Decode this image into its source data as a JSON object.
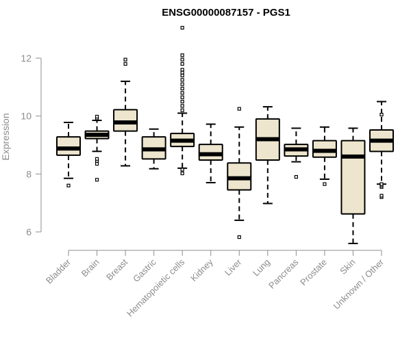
{
  "chart_data": {
    "type": "box",
    "title": "ENSG00000087157 - PGS1",
    "ylabel": "Expression",
    "xlabel": "",
    "ylim": [
      5.3,
      13.2
    ],
    "yticks": [
      6,
      8,
      10,
      12
    ],
    "grid": false,
    "colors": {
      "box_fill": "#ede5cd",
      "box_stroke": "#000000",
      "axis": "#8c8c8c"
    },
    "categories": [
      "Bladder",
      "Brain",
      "Breast",
      "Gastric",
      "Hematopoietic cells",
      "Kidney",
      "Liver",
      "Lung",
      "Pancreas",
      "Prostate",
      "Skin",
      "Unknown / Other"
    ],
    "boxes": [
      {
        "name": "Bladder",
        "whislo": 7.85,
        "q1": 8.65,
        "med": 8.88,
        "q3": 9.28,
        "whishi": 9.78,
        "fliers": [
          7.6
        ]
      },
      {
        "name": "Brain",
        "whislo": 8.78,
        "q1": 9.22,
        "med": 9.35,
        "q3": 9.48,
        "whishi": 9.85,
        "fliers": [
          7.8,
          8.35,
          8.45,
          8.52,
          9.92,
          9.98
        ]
      },
      {
        "name": "Breast",
        "whislo": 8.28,
        "q1": 9.48,
        "med": 9.78,
        "q3": 10.22,
        "whishi": 11.2,
        "fliers": [
          11.8,
          11.95
        ]
      },
      {
        "name": "Gastric",
        "whislo": 8.18,
        "q1": 8.52,
        "med": 8.85,
        "q3": 9.28,
        "whishi": 9.55,
        "fliers": []
      },
      {
        "name": "Hematopoietic cells",
        "whislo": 8.2,
        "q1": 8.95,
        "med": 9.15,
        "q3": 9.4,
        "whishi": 10.1,
        "fliers": [
          8.02,
          8.15,
          10.2,
          10.35,
          10.5,
          10.65,
          10.8,
          10.95,
          11.1,
          11.25,
          11.4,
          11.5,
          11.6,
          11.8,
          11.95,
          12.1,
          13.05
        ]
      },
      {
        "name": "Kidney",
        "whislo": 7.7,
        "q1": 8.48,
        "med": 8.68,
        "q3": 9.02,
        "whishi": 9.72,
        "fliers": []
      },
      {
        "name": "Liver",
        "whislo": 6.4,
        "q1": 7.45,
        "med": 7.85,
        "q3": 8.38,
        "whishi": 9.62,
        "fliers": [
          5.82,
          10.25
        ]
      },
      {
        "name": "Lung",
        "whislo": 6.98,
        "q1": 8.48,
        "med": 9.2,
        "q3": 9.9,
        "whishi": 10.32,
        "fliers": []
      },
      {
        "name": "Pancreas",
        "whislo": 8.42,
        "q1": 8.62,
        "med": 8.85,
        "q3": 9.02,
        "whishi": 9.58,
        "fliers": [
          7.9
        ]
      },
      {
        "name": "Prostate",
        "whislo": 7.82,
        "q1": 8.58,
        "med": 8.8,
        "q3": 9.15,
        "whishi": 9.62,
        "fliers": [
          7.65
        ]
      },
      {
        "name": "Skin",
        "whislo": 5.6,
        "q1": 6.62,
        "med": 8.6,
        "q3": 9.15,
        "whishi": 9.58,
        "fliers": []
      },
      {
        "name": "Unknown / Other",
        "whislo": 7.65,
        "q1": 8.78,
        "med": 9.15,
        "q3": 9.52,
        "whishi": 10.5,
        "fliers": [
          7.2,
          7.25,
          7.55,
          7.6,
          7.65,
          10.05
        ]
      }
    ]
  }
}
